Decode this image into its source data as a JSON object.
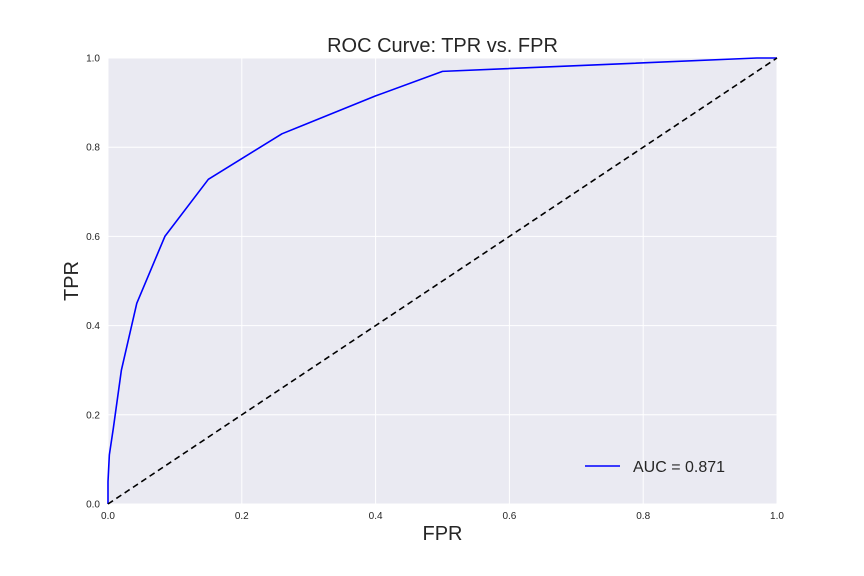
{
  "chart_data": {
    "type": "line",
    "title": "ROC Curve: TPR vs. FPR",
    "xlabel": "FPR",
    "ylabel": "TPR",
    "xlim": [
      0,
      1
    ],
    "ylim": [
      0,
      1
    ],
    "xticks": [
      "0.0",
      "0.2",
      "0.4",
      "0.6",
      "0.8",
      "1.0"
    ],
    "yticks": [
      "0.0",
      "0.2",
      "0.4",
      "0.6",
      "0.8",
      "1.0"
    ],
    "grid": true,
    "legend_position": "lower-right",
    "series": [
      {
        "name": "AUC = 0.871",
        "color": "#0000ff",
        "style": "solid",
        "x": [
          0.0,
          0.0,
          0.002,
          0.008,
          0.02,
          0.043,
          0.085,
          0.15,
          0.26,
          0.4,
          0.5,
          0.97,
          1.0
        ],
        "y": [
          0.0,
          0.05,
          0.11,
          0.17,
          0.3,
          0.45,
          0.6,
          0.728,
          0.83,
          0.915,
          0.97,
          1.0,
          1.0
        ]
      },
      {
        "color": "#000000",
        "style": "dashed",
        "x": [
          0.0,
          1.0
        ],
        "y": [
          0.0,
          1.0
        ]
      }
    ]
  }
}
